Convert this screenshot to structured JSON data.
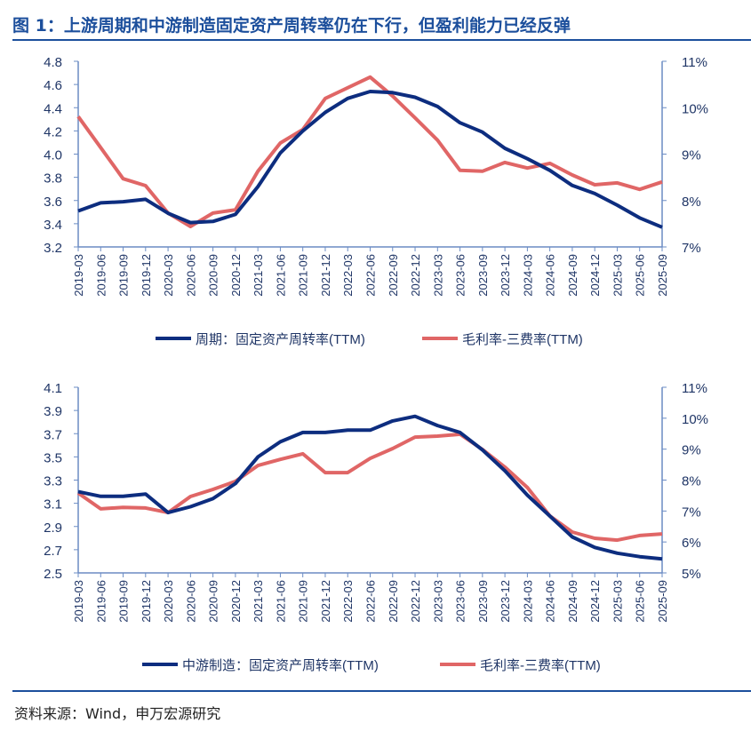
{
  "title": "图 1：上游周期和中游制造固定资产周转率仍在下行，但盈利能力已经反弹",
  "source": "资料来源：Wind，申万宏源研究",
  "colors": {
    "primary": "#0d2d7f",
    "secondary": "#e06666",
    "axis": "#6b8cc4",
    "title": "#1c4f9c"
  },
  "chart_data": [
    {
      "type": "line",
      "categories": [
        "2019-03",
        "2019-06",
        "2019-09",
        "2019-12",
        "2020-03",
        "2020-06",
        "2020-09",
        "2020-12",
        "2021-03",
        "2021-06",
        "2021-09",
        "2021-12",
        "2022-03",
        "2022-06",
        "2022-09",
        "2022-12",
        "2023-03",
        "2023-06",
        "2023-09",
        "2023-12",
        "2024-03",
        "2024-06",
        "2024-09",
        "2024-12",
        "2025-03",
        "2025-06",
        "2025-09"
      ],
      "ylim": [
        3.2,
        4.8
      ],
      "yticks": [
        "3.2",
        "3.4",
        "3.6",
        "3.8",
        "4.0",
        "4.2",
        "4.4",
        "4.6",
        "4.8"
      ],
      "y2lim": [
        7,
        11
      ],
      "y2ticks": [
        "7%",
        "8%",
        "9%",
        "10%",
        "11%"
      ],
      "legend": "bottom",
      "grid": false,
      "series": [
        {
          "name": "周期：固定资产周转率(TTM)",
          "axis": "left",
          "values": [
            3.51,
            3.58,
            3.59,
            3.61,
            3.49,
            3.41,
            3.42,
            3.48,
            3.72,
            4.01,
            4.2,
            4.36,
            4.48,
            4.54,
            4.53,
            4.49,
            4.41,
            4.27,
            4.19,
            4.05,
            3.96,
            3.86,
            3.73,
            3.66,
            3.56,
            3.45,
            3.37
          ]
        },
        {
          "name": "毛利率-三费率(TTM)",
          "axis": "right",
          "values": [
            9.81,
            9.14,
            8.47,
            8.32,
            7.73,
            7.44,
            7.73,
            7.8,
            8.63,
            9.24,
            9.53,
            10.2,
            10.43,
            10.66,
            10.25,
            9.78,
            9.3,
            8.65,
            8.63,
            8.82,
            8.7,
            8.8,
            8.55,
            8.34,
            8.38,
            8.24,
            8.4
          ]
        }
      ]
    },
    {
      "type": "line",
      "categories": [
        "2019-03",
        "2019-06",
        "2019-09",
        "2019-12",
        "2020-03",
        "2020-06",
        "2020-09",
        "2020-12",
        "2021-03",
        "2021-06",
        "2021-09",
        "2021-12",
        "2022-03",
        "2022-06",
        "2022-09",
        "2022-12",
        "2023-03",
        "2023-06",
        "2023-09",
        "2023-12",
        "2024-03",
        "2024-06",
        "2024-09",
        "2024-12",
        "2025-03",
        "2025-06",
        "2025-09"
      ],
      "ylim": [
        2.5,
        4.1
      ],
      "yticks": [
        "2.5",
        "2.7",
        "2.9",
        "3.1",
        "3.3",
        "3.5",
        "3.7",
        "3.9",
        "4.1"
      ],
      "y2lim": [
        5,
        11
      ],
      "y2ticks": [
        "5%",
        "6%",
        "7%",
        "8%",
        "9%",
        "10%",
        "11%"
      ],
      "legend": "bottom",
      "grid": false,
      "series": [
        {
          "name": "中游制造：固定资产周转率(TTM)",
          "axis": "left",
          "values": [
            3.2,
            3.16,
            3.16,
            3.18,
            3.02,
            3.07,
            3.14,
            3.27,
            3.5,
            3.63,
            3.71,
            3.71,
            3.73,
            3.73,
            3.81,
            3.85,
            3.77,
            3.71,
            3.56,
            3.38,
            3.17,
            2.99,
            2.81,
            2.72,
            2.67,
            2.64,
            2.62
          ]
        },
        {
          "name": "毛利率-三费率(TTM)",
          "axis": "right",
          "values": [
            7.58,
            7.07,
            7.12,
            7.1,
            6.95,
            7.47,
            7.7,
            7.96,
            8.47,
            8.67,
            8.85,
            8.24,
            8.24,
            8.7,
            9.02,
            9.39,
            9.42,
            9.48,
            8.99,
            8.42,
            7.76,
            6.84,
            6.32,
            6.12,
            6.06,
            6.21,
            6.26
          ]
        }
      ]
    }
  ]
}
